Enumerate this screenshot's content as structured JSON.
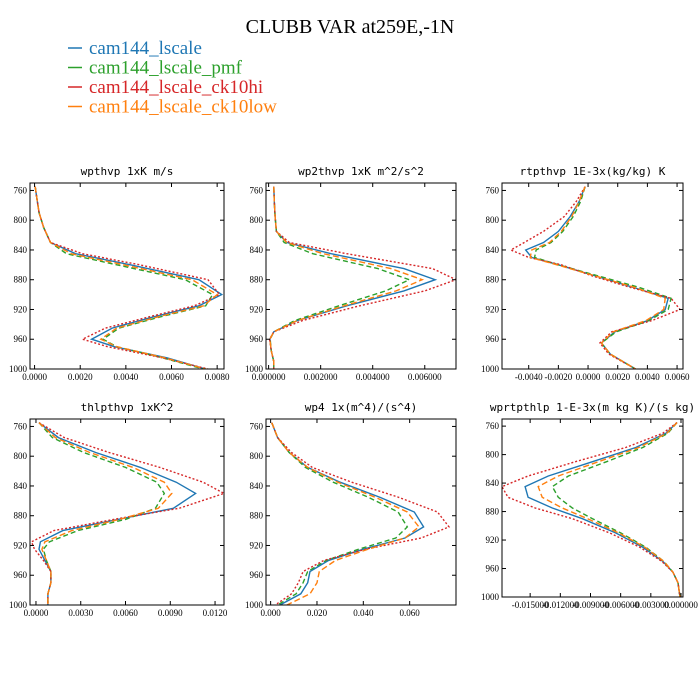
{
  "title": "CLUBB VAR at259E,-1N",
  "legend": [
    {
      "name": "cam144_lscale",
      "color": "#1f77b4",
      "dash": ""
    },
    {
      "name": "cam144_lscale_pmf",
      "color": "#2ca02c",
      "dash": "5,3"
    },
    {
      "name": "cam144_lscale_ck10hi",
      "color": "#d62728",
      "dash": "2,2"
    },
    {
      "name": "cam144_lscale_ck10low",
      "color": "#ff7f0e",
      "dash": "6,3"
    }
  ],
  "chart_data": [
    {
      "type": "line",
      "title": "wpthvp  1xK m/s",
      "xlim": [
        -0.0002,
        0.0083
      ],
      "ylim": [
        750,
        1000
      ],
      "y_inverted": true,
      "xticks": [
        "0.0000",
        "0.0020",
        "0.0040",
        "0.0060",
        "0.0080"
      ],
      "xtick_values": [
        0,
        0.002,
        0.004,
        0.006,
        0.008
      ],
      "yticks": [
        760,
        800,
        840,
        880,
        920,
        960,
        1000
      ],
      "y": [
        755,
        770,
        790,
        810,
        830,
        845,
        860,
        880,
        900,
        915,
        930,
        945,
        960,
        970,
        985,
        1000
      ],
      "series": [
        {
          "name": "cam144_lscale",
          "values": [
            3e-05,
            0.0001,
            0.0002,
            0.0004,
            0.0007,
            0.0018,
            0.0042,
            0.0072,
            0.0082,
            0.0072,
            0.0052,
            0.0034,
            0.0025,
            0.0035,
            0.0058,
            0.0075
          ]
        },
        {
          "name": "cam144_lscale_pmf",
          "values": [
            3e-05,
            0.0001,
            0.0002,
            0.0004,
            0.0007,
            0.0014,
            0.0036,
            0.0066,
            0.0078,
            0.0075,
            0.0055,
            0.0037,
            0.003,
            0.0036,
            0.0056,
            0.0074
          ]
        },
        {
          "name": "cam144_lscale_ck10hi",
          "values": [
            3e-05,
            0.0001,
            0.0002,
            0.0004,
            0.0007,
            0.0021,
            0.0046,
            0.0076,
            0.0081,
            0.007,
            0.005,
            0.0031,
            0.0021,
            0.0032,
            0.0056,
            0.0076
          ]
        },
        {
          "name": "cam144_lscale_ck10low",
          "values": [
            3e-05,
            0.0001,
            0.0002,
            0.0004,
            0.0007,
            0.0016,
            0.0039,
            0.0069,
            0.008,
            0.0074,
            0.0054,
            0.0036,
            0.0029,
            0.0036,
            0.0057,
            0.0075
          ]
        }
      ]
    },
    {
      "type": "line",
      "title": "wp2thvp  1xK m^2/s^2",
      "xlim": [
        -0.0001,
        0.0072
      ],
      "ylim": [
        750,
        1000
      ],
      "y_inverted": true,
      "xticks": [
        "0.000000",
        "0.002000",
        "0.004000",
        "0.006000"
      ],
      "xtick_values": [
        0,
        0.002,
        0.004,
        0.006
      ],
      "yticks": [
        760,
        800,
        840,
        880,
        920,
        960,
        1000
      ],
      "y": [
        755,
        775,
        795,
        815,
        830,
        845,
        865,
        880,
        895,
        915,
        935,
        950,
        960,
        975,
        990,
        1000
      ],
      "series": [
        {
          "name": "cam144_lscale",
          "values": [
            0.0002,
            0.00022,
            0.00025,
            0.0003,
            0.0007,
            0.0024,
            0.0052,
            0.0064,
            0.0052,
            0.003,
            0.0011,
            0.0002,
            5e-05,
            0.0001,
            0.0002,
            0.0002
          ]
        },
        {
          "name": "cam144_lscale_pmf",
          "values": [
            0.0002,
            0.00022,
            0.00025,
            0.0003,
            0.0006,
            0.0017,
            0.0042,
            0.0054,
            0.0045,
            0.0027,
            0.001,
            0.0002,
            6e-05,
            0.0001,
            0.0002,
            0.0002
          ]
        },
        {
          "name": "cam144_lscale_ck10hi",
          "values": [
            0.0002,
            0.00022,
            0.00025,
            0.0003,
            0.0008,
            0.003,
            0.0063,
            0.0072,
            0.006,
            0.0035,
            0.0013,
            0.0002,
            4e-05,
            0.0001,
            0.0002,
            0.0002
          ]
        },
        {
          "name": "cam144_lscale_ck10low",
          "values": [
            0.0002,
            0.00022,
            0.00025,
            0.0003,
            0.0007,
            0.0021,
            0.0047,
            0.0059,
            0.0049,
            0.0029,
            0.0011,
            0.0002,
            5e-05,
            0.0001,
            0.0002,
            0.0002
          ]
        }
      ]
    },
    {
      "type": "line",
      "title": "rtpthvp  1E-3x(kg/kg) K",
      "xlim": [
        -0.0058,
        0.0064
      ],
      "ylim": [
        750,
        1000
      ],
      "y_inverted": true,
      "xticks": [
        "-0.0040",
        "-0.0020",
        "0.0000",
        "0.0020",
        "0.0040",
        "0.0060"
      ],
      "xtick_values": [
        -0.004,
        -0.002,
        0,
        0.002,
        0.004,
        0.006
      ],
      "yticks": [
        760,
        800,
        840,
        880,
        920,
        960,
        1000
      ],
      "y": [
        755,
        775,
        795,
        815,
        830,
        840,
        850,
        860,
        875,
        890,
        905,
        920,
        935,
        950,
        965,
        980,
        1000
      ],
      "series": [
        {
          "name": "cam144_lscale",
          "values": [
            -0.0002,
            -0.0006,
            -0.0012,
            -0.002,
            -0.003,
            -0.0042,
            -0.0038,
            -0.002,
            0.0005,
            0.003,
            0.0054,
            0.0052,
            0.004,
            0.0018,
            0.0009,
            0.0015,
            0.0032
          ]
        },
        {
          "name": "cam144_lscale_pmf",
          "values": [
            -0.0002,
            -0.0005,
            -0.001,
            -0.0017,
            -0.0025,
            -0.0035,
            -0.0036,
            -0.002,
            0.0007,
            0.0034,
            0.0056,
            0.0054,
            0.0041,
            0.0019,
            0.0009,
            0.0015,
            0.0032
          ]
        },
        {
          "name": "cam144_lscale_ck10hi",
          "values": [
            -0.0002,
            -0.0008,
            -0.0016,
            -0.003,
            -0.0043,
            -0.0052,
            -0.004,
            -0.0018,
            0.0003,
            0.0028,
            0.0056,
            0.0062,
            0.0043,
            0.0016,
            0.0008,
            0.0014,
            0.0032
          ]
        },
        {
          "name": "cam144_lscale_ck10low",
          "values": [
            -0.0002,
            -0.0006,
            -0.0011,
            -0.0018,
            -0.0026,
            -0.0038,
            -0.0039,
            -0.0021,
            0.0005,
            0.0031,
            0.0052,
            0.0051,
            0.0039,
            0.0017,
            0.0009,
            0.0015,
            0.0032
          ]
        }
      ]
    },
    {
      "type": "line",
      "title": "thlpthvp  1xK^2",
      "xlim": [
        -0.0004,
        0.0126
      ],
      "ylim": [
        750,
        1000
      ],
      "y_inverted": true,
      "xticks": [
        "0.0000",
        "0.0030",
        "0.0060",
        "0.0090",
        "0.0120"
      ],
      "xtick_values": [
        0,
        0.003,
        0.006,
        0.009,
        0.012
      ],
      "yticks": [
        760,
        800,
        840,
        880,
        920,
        960,
        1000
      ],
      "y": [
        755,
        775,
        795,
        815,
        835,
        850,
        870,
        885,
        900,
        915,
        925,
        940,
        955,
        970,
        985,
        1000
      ],
      "series": [
        {
          "name": "cam144_lscale",
          "values": [
            0.0002,
            0.0015,
            0.004,
            0.007,
            0.0094,
            0.0107,
            0.0092,
            0.0055,
            0.0018,
            0.0003,
            0.0002,
            0.0006,
            0.001,
            0.001,
            0.0008,
            0.0008
          ]
        },
        {
          "name": "cam144_lscale_pmf",
          "values": [
            0.0002,
            0.0011,
            0.0032,
            0.006,
            0.0081,
            0.0086,
            0.008,
            0.006,
            0.0028,
            0.0009,
            0.0005,
            0.0007,
            0.001,
            0.001,
            0.0008,
            0.0008
          ]
        },
        {
          "name": "cam144_lscale_ck10hi",
          "values": [
            0.0002,
            0.0019,
            0.0049,
            0.0083,
            0.0112,
            0.0126,
            0.0096,
            0.0052,
            0.0012,
            -0.0003,
            -0.0001,
            0.0005,
            0.001,
            0.001,
            0.0008,
            0.0008
          ]
        },
        {
          "name": "cam144_lscale_ck10low",
          "values": [
            0.0002,
            0.0013,
            0.0036,
            0.0065,
            0.0086,
            0.0091,
            0.0082,
            0.0056,
            0.0024,
            0.0006,
            0.0004,
            0.0007,
            0.001,
            0.001,
            0.0008,
            0.0008
          ]
        }
      ]
    },
    {
      "type": "line",
      "title": "wp4  1x(m^4)/(s^4)",
      "xlim": [
        -0.002,
        0.08
      ],
      "ylim": [
        750,
        1000
      ],
      "y_inverted": true,
      "xticks": [
        "0.000",
        "0.020",
        "0.040",
        "0.060"
      ],
      "xtick_values": [
        0,
        0.02,
        0.04,
        0.06
      ],
      "yticks": [
        760,
        800,
        840,
        880,
        920,
        960,
        1000
      ],
      "y": [
        755,
        775,
        795,
        815,
        835,
        855,
        875,
        895,
        910,
        925,
        940,
        955,
        970,
        985,
        1000
      ],
      "series": [
        {
          "name": "cam144_lscale",
          "values": [
            0.0005,
            0.003,
            0.008,
            0.016,
            0.03,
            0.047,
            0.062,
            0.066,
            0.058,
            0.04,
            0.025,
            0.017,
            0.016,
            0.013,
            0.004
          ]
        },
        {
          "name": "cam144_lscale_pmf",
          "values": [
            0.0005,
            0.003,
            0.008,
            0.015,
            0.027,
            0.042,
            0.055,
            0.059,
            0.054,
            0.038,
            0.024,
            0.016,
            0.014,
            0.011,
            0.003
          ]
        },
        {
          "name": "cam144_lscale_ck10hi",
          "values": [
            0.0005,
            0.003,
            0.009,
            0.018,
            0.035,
            0.055,
            0.072,
            0.077,
            0.065,
            0.041,
            0.023,
            0.014,
            0.012,
            0.009,
            0.002
          ]
        },
        {
          "name": "cam144_lscale_ck10low",
          "values": [
            0.0005,
            0.003,
            0.008,
            0.016,
            0.029,
            0.045,
            0.059,
            0.064,
            0.058,
            0.042,
            0.028,
            0.021,
            0.02,
            0.017,
            0.007
          ]
        }
      ]
    },
    {
      "type": "line",
      "title": "wprtpthlp  1-E-3x(m kg K)/(s kg)",
      "xlim": [
        -0.0178,
        0.0002
      ],
      "ylim": [
        750,
        1000
      ],
      "y_inverted": true,
      "xticks": [
        "-0.015000",
        "-0.012000",
        "-0.009000",
        "-0.006000",
        "-0.003000",
        "0.000000"
      ],
      "xtick_values": [
        -0.015,
        -0.012,
        -0.009,
        -0.006,
        -0.003,
        0
      ],
      "yticks": [
        760,
        800,
        840,
        880,
        920,
        960,
        1000
      ],
      "y": [
        755,
        770,
        790,
        810,
        830,
        845,
        860,
        875,
        890,
        910,
        930,
        950,
        965,
        980,
        1000
      ],
      "series": [
        {
          "name": "cam144_lscale",
          "values": [
            -0.0004,
            -0.0015,
            -0.0045,
            -0.0088,
            -0.0132,
            -0.0155,
            -0.0152,
            -0.0128,
            -0.0098,
            -0.0065,
            -0.0038,
            -0.0018,
            -0.0008,
            -0.0003,
            -0.0001
          ]
        },
        {
          "name": "cam144_lscale_pmf",
          "values": [
            -0.0004,
            -0.0013,
            -0.0038,
            -0.0074,
            -0.0112,
            -0.0128,
            -0.0122,
            -0.0108,
            -0.0088,
            -0.006,
            -0.0035,
            -0.0017,
            -0.0008,
            -0.0003,
            -0.0001
          ]
        },
        {
          "name": "cam144_lscale_ck10hi",
          "values": [
            -0.0004,
            -0.0018,
            -0.0055,
            -0.0105,
            -0.0152,
            -0.0178,
            -0.0172,
            -0.0145,
            -0.0108,
            -0.0071,
            -0.0041,
            -0.0019,
            -0.0008,
            -0.0003,
            -0.0001
          ]
        },
        {
          "name": "cam144_lscale_ck10low",
          "values": [
            -0.0004,
            -0.0014,
            -0.0042,
            -0.0082,
            -0.0122,
            -0.0142,
            -0.0138,
            -0.0118,
            -0.0093,
            -0.0062,
            -0.0036,
            -0.0017,
            -0.0008,
            -0.0003,
            -0.0001
          ]
        }
      ]
    }
  ]
}
